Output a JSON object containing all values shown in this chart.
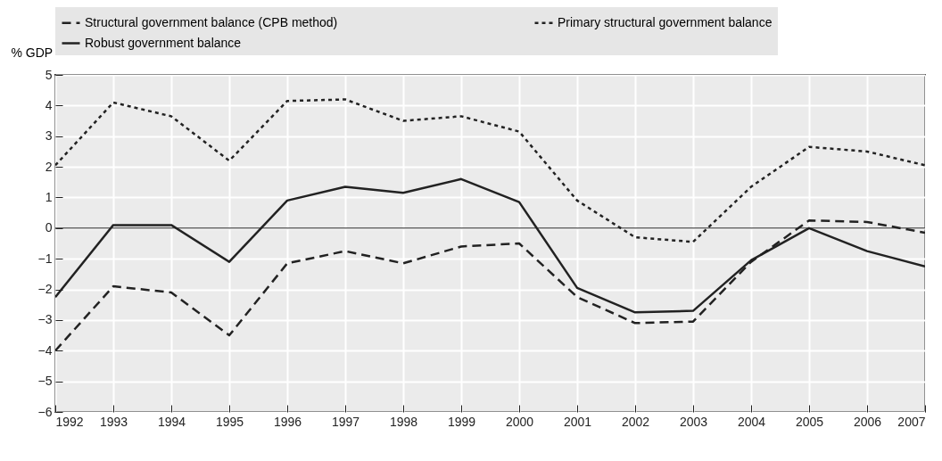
{
  "chart_data": {
    "type": "line",
    "ylabel": "% GDP",
    "x": [
      1992,
      1993,
      1994,
      1995,
      1996,
      1997,
      1998,
      1999,
      2000,
      2001,
      2002,
      2003,
      2004,
      2005,
      2006,
      2007
    ],
    "xlim": [
      1992,
      2007
    ],
    "xticks": [
      1992,
      1993,
      1994,
      1995,
      1996,
      1997,
      1998,
      1999,
      2000,
      2001,
      2002,
      2003,
      2004,
      2005,
      2006,
      2007
    ],
    "ylim": [
      -6,
      5
    ],
    "yticks": [
      -6,
      -5,
      -4,
      -3,
      -2,
      -1,
      0,
      1,
      2,
      3,
      4,
      5
    ],
    "grid": true,
    "legend": "top",
    "ref_lines": [
      {
        "axis": "y",
        "value": 0,
        "label": null,
        "color": "#222222"
      }
    ],
    "series": [
      {
        "name": "Structural government balance (CPB method)",
        "color": "#222222",
        "line_style": "dashed",
        "values": [
          -4.0,
          -1.9,
          -2.1,
          -3.5,
          -1.15,
          -0.75,
          -1.15,
          -0.6,
          -0.5,
          -2.25,
          -3.1,
          -3.05,
          -1.1,
          0.25,
          0.2,
          -0.15
        ]
      },
      {
        "name": "Primary structural government balance",
        "color": "#222222",
        "line_style": "dotted",
        "values": [
          2.05,
          4.1,
          3.65,
          2.2,
          4.15,
          4.2,
          3.5,
          3.65,
          3.15,
          0.9,
          -0.3,
          -0.45,
          1.35,
          2.65,
          2.5,
          2.05
        ]
      },
      {
        "name": "Robust government balance",
        "color": "#222222",
        "line_style": "solid",
        "values": [
          -2.25,
          0.1,
          0.1,
          -1.1,
          0.9,
          1.35,
          1.15,
          1.6,
          0.85,
          -1.95,
          -2.75,
          -2.7,
          -1.05,
          0.0,
          -0.75,
          -1.25
        ]
      }
    ]
  }
}
